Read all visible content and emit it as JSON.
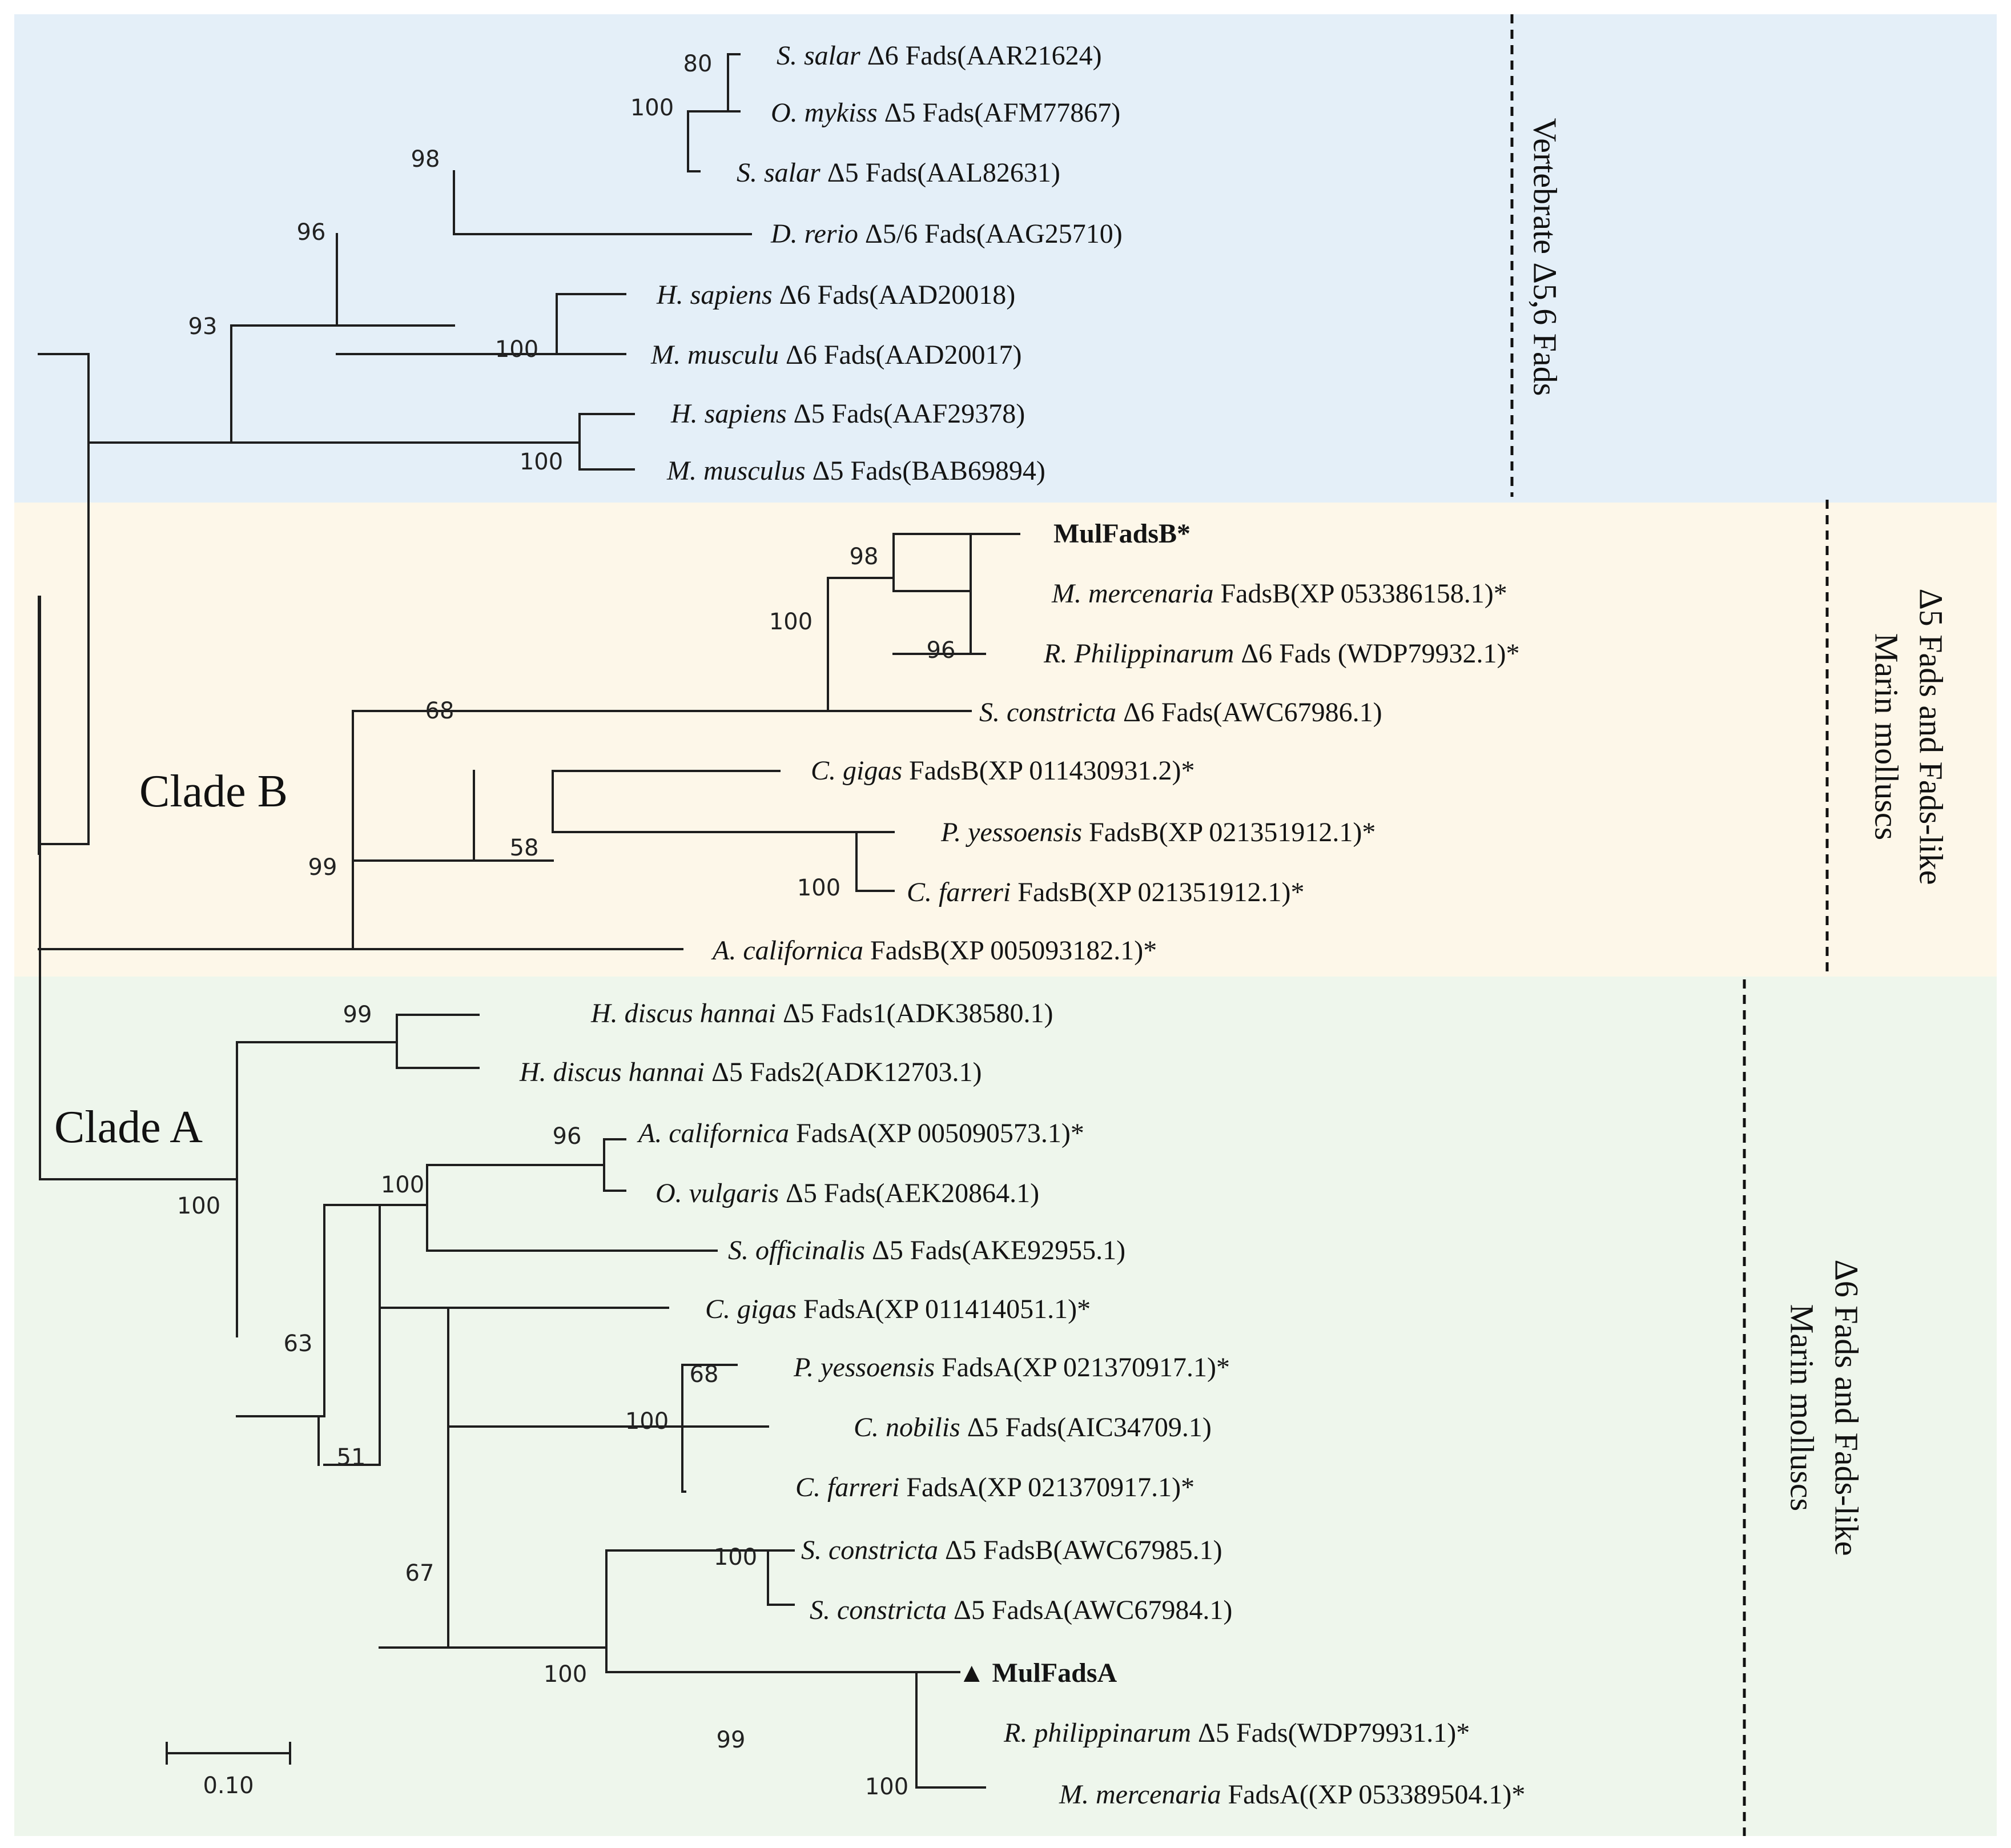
{
  "colors": {
    "vertebrate_bg": "#e4eff8",
    "cladeB_bg": "#fdf7e9",
    "cladeA_bg": "#eef6ec"
  },
  "regions": [
    {
      "id": "vertebrate",
      "color": "#e4eff8"
    },
    {
      "id": "cladeB",
      "color": "#fdf7e9"
    },
    {
      "id": "cladeA",
      "color": "#eef6ec"
    }
  ],
  "clade_labels": {
    "clade_b": "Clade B",
    "clade_a": "Clade A"
  },
  "group_labels": [
    {
      "id": "vertebrate",
      "lines": [
        "Vertebrate Δ5,6 Fads"
      ]
    },
    {
      "id": "molluscs_b",
      "lines": [
        "Marin molluscs",
        "Δ5 Fads and Fads-like"
      ]
    },
    {
      "id": "molluscs_a",
      "lines": [
        "Marin molluscs",
        "Δ6 Fads and Fads-like"
      ]
    }
  ],
  "leaves": [
    {
      "species": "S. salar",
      "desc": " Δ6 Fads(AAR21624)"
    },
    {
      "species": "O. mykiss",
      "desc": " Δ5 Fads(AFM77867)"
    },
    {
      "species": "S. salar",
      "desc": " Δ5 Fads(AAL82631)"
    },
    {
      "species": "D. rerio",
      "desc": " Δ5/6 Fads(AAG25710)"
    },
    {
      "species": "H. sapiens",
      "desc": " Δ6 Fads(AAD20018)"
    },
    {
      "species": "M. musculu",
      "desc": " Δ6 Fads(AAD20017)"
    },
    {
      "species": "H. sapiens",
      "desc": " Δ5 Fads(AAF29378)"
    },
    {
      "species": "M. musculus",
      "desc": " Δ5 Fads(BAB69894)"
    },
    {
      "species": "",
      "desc": "MulFadsB*",
      "bold": true
    },
    {
      "species": "M. mercenaria",
      "desc": " FadsB(XP 053386158.1)*"
    },
    {
      "species": "R. Philippinarum",
      "desc": " Δ6 Fads (WDP79932.1)*"
    },
    {
      "species": "S. constricta",
      "desc": " Δ6 Fads(AWC67986.1)"
    },
    {
      "species": "C. gigas",
      "desc": " FadsB(XP 011430931.2)*"
    },
    {
      "species": "P. yessoensis",
      "desc": "  FadsB(XP 021351912.1)*"
    },
    {
      "species": "C. farreri",
      "desc": " FadsB(XP 021351912.1)*"
    },
    {
      "species": "A. californica",
      "desc": "  FadsB(XP 005093182.1)*"
    },
    {
      "species": "H. discus hannai",
      "desc": " Δ5 Fads1(ADK38580.1)"
    },
    {
      "species": "H. discus hannai",
      "desc": " Δ5 Fads2(ADK12703.1)"
    },
    {
      "species": "A. californica",
      "desc": "  FadsA(XP 005090573.1)*"
    },
    {
      "species": "O. vulgaris",
      "desc": " Δ5 Fads(AEK20864.1)"
    },
    {
      "species": "S. officinalis",
      "desc": " Δ5 Fads(AKE92955.1)"
    },
    {
      "species": "C. gigas",
      "desc": " FadsA(XP 011414051.1)*"
    },
    {
      "species": "P. yessoensis",
      "desc": "  FadsA(XP 021370917.1)*"
    },
    {
      "species": "C. nobilis",
      "desc": " Δ5 Fads(AIC34709.1)"
    },
    {
      "species": "C. farreri",
      "desc": " FadsA(XP 021370917.1)*"
    },
    {
      "species": "S. constricta",
      "desc": " Δ5 FadsB(AWC67985.1)"
    },
    {
      "species": "S. constricta",
      "desc": " Δ5 FadsA(AWC67984.1)"
    },
    {
      "species": "",
      "desc": "MulFadsA",
      "bold": true,
      "marker": "▲"
    },
    {
      "species": "R. philippinarum",
      "desc": " Δ5 Fads(WDP79931.1)*"
    },
    {
      "species": "M. mercenaria",
      "desc": "  FadsA((XP 053389504.1)*"
    }
  ],
  "bootstrap": [
    "80",
    "100",
    "98",
    "96",
    "100",
    "93",
    "100",
    "98",
    "96",
    "100",
    "68",
    "58",
    "100",
    "99",
    "99",
    "100",
    "96",
    "100",
    "63",
    "68",
    "100",
    "51",
    "67",
    "100",
    "100",
    "99",
    "100"
  ],
  "scale_bar": {
    "label": "0.10",
    "value": 0.1
  }
}
